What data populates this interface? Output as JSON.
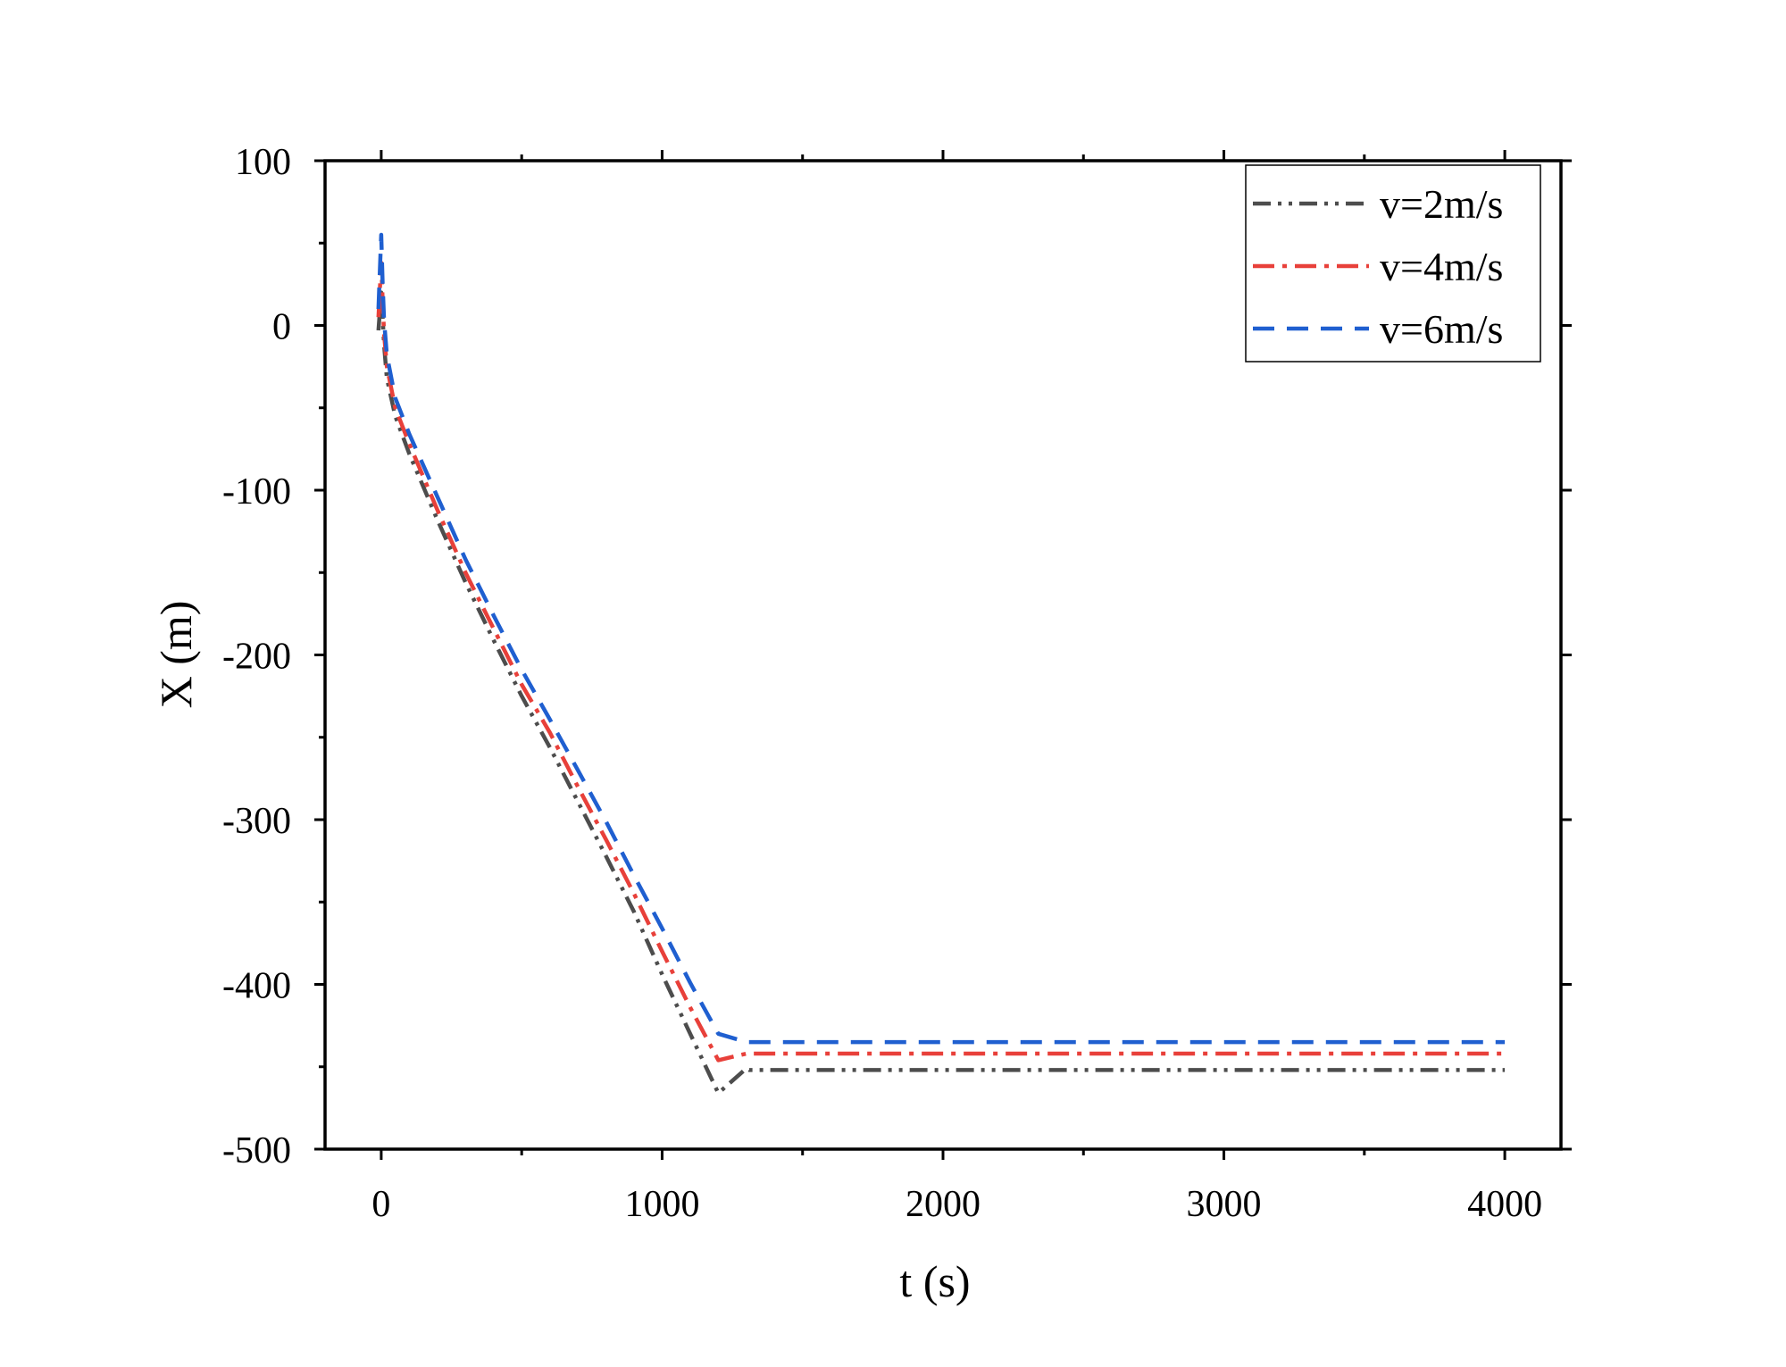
{
  "chart_data": {
    "type": "line",
    "title": "",
    "xlabel": "t (s)",
    "ylabel": "X (m)",
    "xlim": [
      -200,
      4200
    ],
    "ylim": [
      -500,
      100
    ],
    "xticks": [
      0,
      1000,
      2000,
      3000,
      4000
    ],
    "xtick_labels": [
      "0",
      "1000",
      "2000",
      "3000",
      "4000"
    ],
    "yticks": [
      -500,
      -400,
      -300,
      -200,
      -100,
      0,
      100
    ],
    "ytick_labels": [
      "-500",
      "-400",
      "-300",
      "-200",
      "-100",
      "0",
      "100"
    ],
    "legend_position": "top-right",
    "series": [
      {
        "name": "v=2m/s",
        "color": "#4d4d4d",
        "dash": "dash-dot-dot",
        "x": [
          -10,
          0,
          5,
          10,
          20,
          50,
          100,
          200,
          300,
          400,
          500,
          600,
          700,
          800,
          900,
          1000,
          1100,
          1200,
          1300,
          1310,
          1500,
          2000,
          3000,
          4000
        ],
        "y": [
          -3,
          20,
          5,
          -12,
          -32,
          -55,
          -78,
          -118,
          -156,
          -191,
          -225,
          -256,
          -289,
          -322,
          -356,
          -394,
          -430,
          -466,
          -451,
          -452,
          -452,
          -452,
          -452,
          -452
        ]
      },
      {
        "name": "v=4m/s",
        "color": "#e8403a",
        "dash": "dash-dot",
        "x": [
          -10,
          0,
          5,
          10,
          20,
          50,
          100,
          200,
          300,
          400,
          500,
          600,
          700,
          800,
          900,
          1000,
          1100,
          1200,
          1300,
          1320,
          1500,
          2000,
          3000,
          4000
        ],
        "y": [
          5,
          38,
          15,
          -5,
          -25,
          -50,
          -72,
          -112,
          -150,
          -184,
          -218,
          -247,
          -280,
          -312,
          -345,
          -380,
          -414,
          -446,
          -442,
          -442,
          -442,
          -442,
          -442,
          -442
        ]
      },
      {
        "name": "v=6m/s",
        "color": "#1f5fd0",
        "dash": "dash",
        "x": [
          -10,
          0,
          5,
          10,
          20,
          50,
          100,
          200,
          300,
          400,
          500,
          600,
          700,
          800,
          900,
          1000,
          1100,
          1200,
          1300,
          1330,
          1500,
          2000,
          3000,
          4000
        ],
        "y": [
          10,
          55,
          25,
          3,
          -18,
          -44,
          -66,
          -104,
          -142,
          -176,
          -209,
          -239,
          -270,
          -301,
          -334,
          -366,
          -399,
          -430,
          -435,
          -435,
          -435,
          -435,
          -435,
          -435
        ]
      }
    ]
  }
}
